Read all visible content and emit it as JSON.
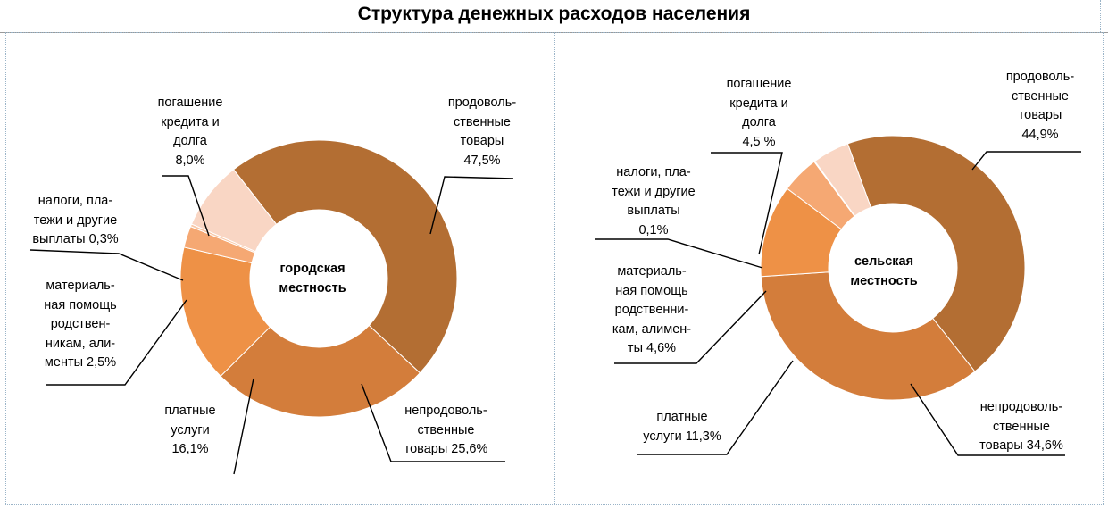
{
  "title": "Структура денежных расходов населения",
  "colors": {
    "food": "#B36E33",
    "nonfood": "#D37D3B",
    "services": "#EE9146",
    "aid": "#F5A873",
    "taxes": "#F9C7A6",
    "credit": "#F9D6C4"
  },
  "chart_data": [
    {
      "type": "pie",
      "variant": "donut",
      "center_label": [
        "городская",
        "местность"
      ],
      "categories": [
        "продовольственные товары",
        "непродовольственные товары",
        "платные услуги",
        "материальная помощь родственникам, алименты",
        "налоги, платежи и другие выплаты",
        "погашение кредита и долга"
      ],
      "values": [
        47.5,
        25.6,
        16.1,
        2.5,
        0.3,
        8.0
      ],
      "labels": {
        "food": [
          "продоволь-",
          "ственные",
          "товары",
          "47,5%"
        ],
        "nonfood": [
          "непродоволь-",
          "ственные",
          "товары 25,6%"
        ],
        "services": [
          "платные",
          "услуги",
          "16,1%"
        ],
        "aid": [
          "материаль-",
          "ная помощь",
          "родствен-",
          "никам, али-",
          "менты 2,5%"
        ],
        "taxes": [
          "налоги, пла-",
          "тежи и другие",
          "выплаты 0,3%"
        ],
        "credit": [
          "погашение",
          "кредита и",
          "долга",
          "8,0%"
        ]
      }
    },
    {
      "type": "pie",
      "variant": "donut",
      "center_label": [
        "сельская",
        "местность"
      ],
      "categories": [
        "продовольственные товары",
        "непродовольственные товары",
        "платные услуги",
        "материальная помощь родственникам, алименты",
        "налоги, платежи и другие выплаты",
        "погашение кредита и долга"
      ],
      "values": [
        44.9,
        34.6,
        11.3,
        4.6,
        0.1,
        4.5
      ],
      "labels": {
        "food": [
          "продоволь-",
          "ственные",
          "товары",
          "44,9%"
        ],
        "nonfood": [
          "непродоволь-",
          "ственные",
          "товары  34,6%"
        ],
        "services": [
          "платные",
          "услуги 11,3%"
        ],
        "aid": [
          "материаль-",
          "ная помощь",
          "родственни-",
          "кам, алимен-",
          "ты 4,6%"
        ],
        "taxes": [
          "налоги, пла-",
          "тежи и другие",
          "выплаты",
          "0,1%"
        ],
        "credit": [
          "погашение",
          "кредита и",
          "долга",
          "4,5 %"
        ]
      }
    }
  ]
}
